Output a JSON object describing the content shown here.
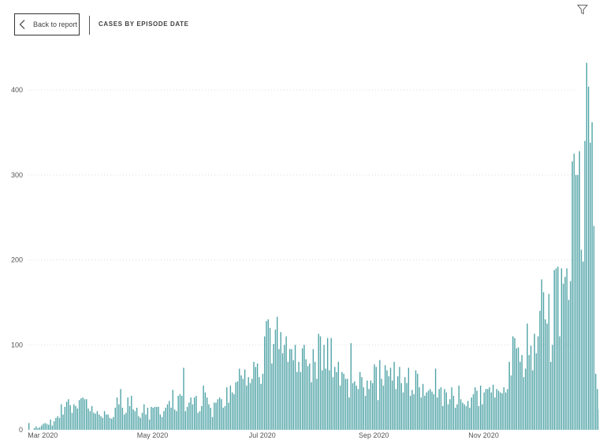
{
  "header": {
    "back_label": "Back to report",
    "title": "CASES BY EPISODE DATE",
    "back_icon": "chevron-left-icon",
    "filter_icon": "filter-icon"
  },
  "colors": {
    "bar": "#4fa3a6",
    "grid": "#dddddd"
  },
  "chart_data": {
    "type": "bar",
    "title": "CASES BY EPISODE DATE",
    "xlabel": "",
    "ylabel": "",
    "x_start": "2020-02-22",
    "x_end": "2020-12-22",
    "ylim": [
      0,
      440
    ],
    "yticks": [
      0,
      100,
      200,
      300,
      400
    ],
    "grid": true,
    "xticks": [
      {
        "label": "Mar 2020",
        "date": "2020-03-01"
      },
      {
        "label": "May 2020",
        "date": "2020-05-01"
      },
      {
        "label": "Jul 2020",
        "date": "2020-07-01"
      },
      {
        "label": "Sep 2020",
        "date": "2020-09-01"
      },
      {
        "label": "Nov 2020",
        "date": "2020-11-01"
      }
    ],
    "values": [
      8,
      0,
      0,
      2,
      4,
      2,
      3,
      5,
      7,
      8,
      7,
      6,
      12,
      5,
      10,
      14,
      16,
      14,
      30,
      18,
      27,
      33,
      36,
      29,
      20,
      30,
      28,
      25,
      35,
      37,
      38,
      36,
      36,
      25,
      22,
      28,
      20,
      19,
      22,
      18,
      16,
      14,
      22,
      18,
      18,
      14,
      13,
      15,
      26,
      38,
      30,
      48,
      26,
      18,
      20,
      38,
      28,
      40,
      24,
      22,
      26,
      16,
      14,
      20,
      30,
      18,
      26,
      12,
      27,
      26,
      27,
      27,
      27,
      18,
      15,
      22,
      26,
      30,
      34,
      26,
      47,
      24,
      22,
      40,
      42,
      40,
      73,
      22,
      27,
      32,
      38,
      30,
      38,
      40,
      20,
      22,
      28,
      52,
      44,
      38,
      30,
      26,
      15,
      32,
      32,
      36,
      38,
      36,
      26,
      28,
      50,
      32,
      52,
      44,
      42,
      56,
      57,
      72,
      64,
      60,
      71,
      52,
      62,
      55,
      60,
      80,
      74,
      78,
      62,
      54,
      66,
      110,
      128,
      130,
      120,
      78,
      101,
      118,
      133,
      95,
      115,
      90,
      100,
      110,
      80,
      95,
      95,
      82,
      100,
      68,
      80,
      68,
      96,
      100,
      83,
      75,
      78,
      56,
      95,
      80,
      60,
      113,
      110,
      70,
      100,
      72,
      108,
      70,
      108,
      62,
      74,
      68,
      80,
      52,
      68,
      66,
      60,
      60,
      38,
      102,
      55,
      57,
      52,
      48,
      68,
      62,
      50,
      40,
      58,
      48,
      58,
      55,
      77,
      74,
      35,
      82,
      60,
      52,
      76,
      70,
      63,
      73,
      58,
      80,
      48,
      63,
      74,
      55,
      44,
      62,
      55,
      73,
      40,
      47,
      42,
      70,
      66,
      50,
      38,
      54,
      40,
      44,
      46,
      48,
      45,
      42,
      72,
      38,
      48,
      50,
      28,
      48,
      44,
      30,
      36,
      50,
      40,
      26,
      30,
      52,
      36,
      32,
      30,
      28,
      34,
      26,
      38,
      42,
      50,
      46,
      28,
      52,
      30,
      44,
      48,
      48,
      50,
      44,
      53,
      38,
      48,
      46,
      44,
      43,
      50,
      44,
      48,
      80,
      64,
      110,
      108,
      96,
      97,
      80,
      88,
      62,
      72,
      125,
      88,
      99,
      70,
      113,
      90,
      110,
      140,
      177,
      162,
      130,
      125,
      160,
      80,
      100,
      188,
      190,
      192,
      110,
      190,
      172,
      180,
      190,
      153,
      175,
      316,
      325,
      300,
      300,
      328,
      212,
      198,
      340,
      432,
      404,
      338,
      362,
      240,
      66,
      48,
      24
    ]
  }
}
